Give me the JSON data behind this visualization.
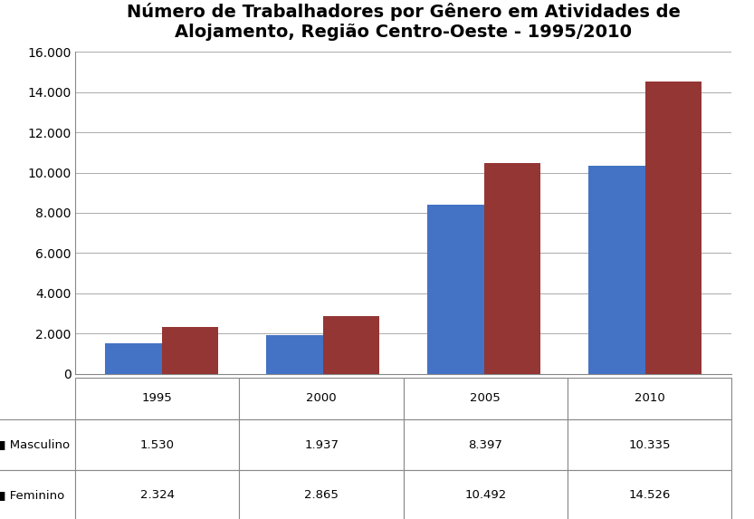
{
  "title": "Número de Trabalhadores por Gênero em Atividades de\nAlojamento, Região Centro-Oeste - 1995/2010",
  "years": [
    "1995",
    "2000",
    "2005",
    "2010"
  ],
  "masculino": [
    1530,
    1937,
    8397,
    10335
  ],
  "feminino": [
    2324,
    2865,
    10492,
    14526
  ],
  "masculino_labels": [
    "1.530",
    "1.937",
    "8.397",
    "10.335"
  ],
  "feminino_labels": [
    "2.324",
    "2.865",
    "10.492",
    "14.526"
  ],
  "color_masculino": "#4472C4",
  "color_feminino": "#943634",
  "ylim": [
    0,
    16000
  ],
  "yticks": [
    0,
    2000,
    4000,
    6000,
    8000,
    10000,
    12000,
    14000,
    16000
  ],
  "ytick_labels": [
    "0",
    "2.000",
    "4.000",
    "6.000",
    "8.000",
    "10.000",
    "12.000",
    "14.000",
    "16.000"
  ],
  "title_fontsize": 14,
  "tick_fontsize": 10,
  "legend_labels": [
    "Masculino",
    "Feminino"
  ],
  "bar_width": 0.35,
  "background_color": "#FFFFFF",
  "grid_color": "#AAAAAA",
  "table_row_labels": [
    "Masculino",
    "Feminino"
  ]
}
